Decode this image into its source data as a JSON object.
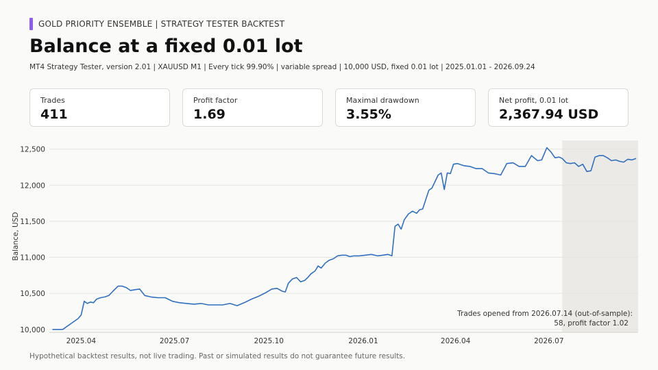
{
  "header": {
    "eyebrow": "GOLD PRIORITY ENSEMBLE  |  STRATEGY TESTER BACKTEST",
    "title": "Balance at a fixed 0.01 lot",
    "subtitle": "MT4 Strategy Tester, version 2.01  |  XAUUSD M1  |  Every tick 99.90%  |  variable spread  |  10,000 USD, fixed 0.01 lot  |  2025.01.01 - 2026.09.24",
    "accent_color": "#8b5cf6"
  },
  "kpis": [
    {
      "label": "Trades",
      "value": "411"
    },
    {
      "label": "Profit factor",
      "value": "1.69"
    },
    {
      "label": "Maximal drawdown",
      "value": "3.55%"
    },
    {
      "label": "Net profit, 0.01 lot",
      "value": "2,367.94 USD"
    }
  ],
  "footnote": "Hypothetical backtest results, not live trading. Past or simulated results do not guarantee future results.",
  "chart_data": {
    "type": "line",
    "ylabel": "Balance, USD",
    "ylim": [
      9960,
      12620
    ],
    "xlim": [
      "2025-03-01",
      "2026-09-26"
    ],
    "y_ticks": [
      10000,
      10500,
      11000,
      11500,
      12000,
      12500
    ],
    "y_tick_labels": [
      "10,000",
      "10,500",
      "11,000",
      "11,500",
      "12,000",
      "12,500"
    ],
    "x_ticks": [
      "2025-04-01",
      "2025-07-01",
      "2025-10-01",
      "2026-01-01",
      "2026-04-01",
      "2026-07-01"
    ],
    "x_tick_labels": [
      "2025.04",
      "2025.07",
      "2025.10",
      "2026.01",
      "2026.04",
      "2026.07"
    ],
    "grid": "horizontal",
    "line_color": "#2e6fbf",
    "shaded_region": {
      "start": "2026-07-14",
      "end": "2026-09-26",
      "color": "#eceae6",
      "annotation": [
        "Trades opened from 2026.07.14 (out-of-sample):",
        "58, profit factor 1.02"
      ]
    },
    "series": [
      {
        "x": [
          "2025-03-04",
          "2025-03-14",
          "2025-03-22",
          "2025-03-29",
          "2025-04-01",
          "2025-04-04",
          "2025-04-07",
          "2025-04-10",
          "2025-04-13",
          "2025-04-16",
          "2025-04-20",
          "2025-04-24",
          "2025-04-28",
          "2025-05-02",
          "2025-05-07",
          "2025-05-11",
          "2025-05-15",
          "2025-05-19",
          "2025-05-23",
          "2025-05-28",
          "2025-06-02",
          "2025-06-08",
          "2025-06-15",
          "2025-06-22",
          "2025-06-29",
          "2025-07-06",
          "2025-07-13",
          "2025-07-20",
          "2025-07-27",
          "2025-08-03",
          "2025-08-10",
          "2025-08-17",
          "2025-08-24",
          "2025-08-31",
          "2025-09-07",
          "2025-09-14",
          "2025-09-21",
          "2025-09-28",
          "2025-10-04",
          "2025-10-09",
          "2025-10-14",
          "2025-10-17",
          "2025-10-20",
          "2025-10-24",
          "2025-10-28",
          "2025-11-01",
          "2025-11-05",
          "2025-11-08",
          "2025-11-11",
          "2025-11-15",
          "2025-11-18",
          "2025-11-21",
          "2025-11-25",
          "2025-11-29",
          "2025-12-03",
          "2025-12-07",
          "2025-12-11",
          "2025-12-15",
          "2025-12-19",
          "2025-12-23",
          "2025-12-28",
          "2026-01-03",
          "2026-01-09",
          "2026-01-15",
          "2026-01-20",
          "2026-01-25",
          "2026-01-29",
          "2026-02-01",
          "2026-02-04",
          "2026-02-07",
          "2026-02-10",
          "2026-02-14",
          "2026-02-18",
          "2026-02-22",
          "2026-02-25",
          "2026-02-28",
          "2026-03-03",
          "2026-03-06",
          "2026-03-09",
          "2026-03-12",
          "2026-03-15",
          "2026-03-18",
          "2026-03-21",
          "2026-03-24",
          "2026-03-27",
          "2026-03-30",
          "2026-04-03",
          "2026-04-09",
          "2026-04-15",
          "2026-04-21",
          "2026-04-27",
          "2026-05-03",
          "2026-05-09",
          "2026-05-15",
          "2026-05-21",
          "2026-05-27",
          "2026-06-02",
          "2026-06-08",
          "2026-06-14",
          "2026-06-20",
          "2026-06-24",
          "2026-06-29",
          "2026-07-03",
          "2026-07-07",
          "2026-07-11",
          "2026-07-14",
          "2026-07-18",
          "2026-07-22",
          "2026-07-26",
          "2026-07-30",
          "2026-08-03",
          "2026-08-07",
          "2026-08-11",
          "2026-08-15",
          "2026-08-19",
          "2026-08-23",
          "2026-08-27",
          "2026-08-31",
          "2026-09-04",
          "2026-09-08",
          "2026-09-12",
          "2026-09-16",
          "2026-09-20",
          "2026-09-24"
        ],
        "y": [
          10000,
          10000,
          10080,
          10150,
          10200,
          10390,
          10360,
          10380,
          10370,
          10420,
          10440,
          10450,
          10470,
          10530,
          10600,
          10600,
          10580,
          10540,
          10550,
          10560,
          10470,
          10450,
          10440,
          10440,
          10390,
          10370,
          10360,
          10350,
          10360,
          10340,
          10340,
          10340,
          10360,
          10330,
          10370,
          10420,
          10460,
          10510,
          10560,
          10570,
          10530,
          10520,
          10640,
          10700,
          10720,
          10660,
          10680,
          10720,
          10770,
          10810,
          10880,
          10850,
          10920,
          10960,
          10980,
          11020,
          11030,
          11030,
          11010,
          11020,
          11020,
          11030,
          11040,
          11020,
          11030,
          11040,
          11020,
          11430,
          11460,
          11390,
          11520,
          11600,
          11640,
          11610,
          11660,
          11670,
          11800,
          11930,
          11960,
          12050,
          12140,
          12170,
          11940,
          12170,
          12160,
          12290,
          12300,
          12270,
          12260,
          12230,
          12230,
          12170,
          12160,
          12140,
          12300,
          12310,
          12260,
          12260,
          12410,
          12340,
          12350,
          12520,
          12460,
          12380,
          12390,
          12370,
          12310,
          12300,
          12310,
          12260,
          12290,
          12190,
          12200,
          12390,
          12410,
          12410,
          12380,
          12340,
          12350,
          12330,
          12320,
          12360,
          12350,
          12370
        ]
      }
    ]
  }
}
